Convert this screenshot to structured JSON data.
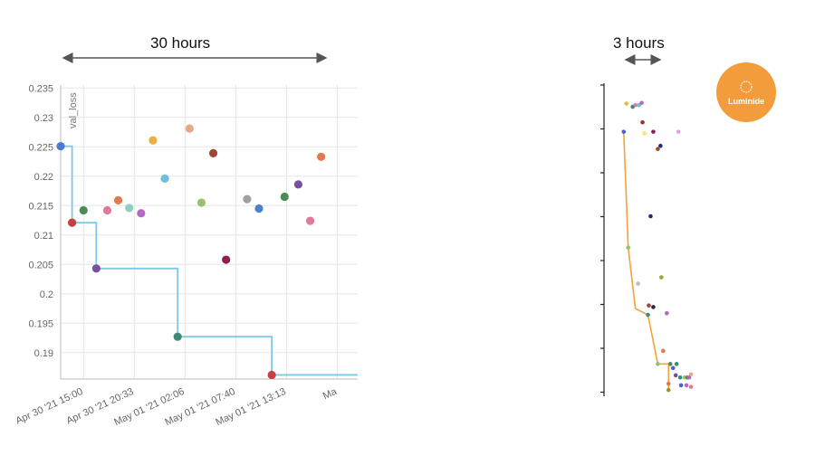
{
  "annotations": {
    "left_span": "30 hours",
    "right_span": "3 hours",
    "arrow_color": "#555555"
  },
  "logo": {
    "text": "Luminide",
    "color": "#f39c3b"
  },
  "chart_data": [
    {
      "type": "scatter",
      "ylabel": "val_loss",
      "ylim": [
        0.1855,
        0.2355
      ],
      "y_ticks": [
        0.235,
        0.23,
        0.225,
        0.22,
        0.215,
        0.21,
        0.205,
        0.2,
        0.195,
        0.19
      ],
      "y_tick_labels": [
        "0.235",
        "0.23",
        "0.225",
        "0.22",
        "0.215",
        "0.21",
        "0.205",
        "0.2",
        "0.195",
        "0.19"
      ],
      "x_tick_labels": [
        "Apr 30 '21 15:00",
        "Apr 30 '21 20:33",
        "May 01 '21 02:06",
        "May 01 '21 07:40",
        "May 01 '21 13:13",
        "Ma"
      ],
      "x_ticks_hours": [
        0,
        5.55,
        11.1,
        16.67,
        22.22,
        27.77
      ],
      "xlim_hours": [
        -2.5,
        30.0
      ],
      "grid": true,
      "points": [
        {
          "x": -2.5,
          "y": 0.2251,
          "color": "#4a7bd0"
        },
        {
          "x": -1.25,
          "y": 0.2121,
          "color": "#cc3d3d"
        },
        {
          "x": 0.0,
          "y": 0.2142,
          "color": "#4e8a55"
        },
        {
          "x": 1.4,
          "y": 0.2043,
          "color": "#7a4fa0"
        },
        {
          "x": 2.6,
          "y": 0.2142,
          "color": "#e07a9a"
        },
        {
          "x": 3.8,
          "y": 0.2159,
          "color": "#e07850"
        },
        {
          "x": 5.0,
          "y": 0.2146,
          "color": "#8fcfc0"
        },
        {
          "x": 6.3,
          "y": 0.2137,
          "color": "#b868c0"
        },
        {
          "x": 7.6,
          "y": 0.2261,
          "color": "#e8b040"
        },
        {
          "x": 8.9,
          "y": 0.2196,
          "color": "#6cc0dc"
        },
        {
          "x": 10.3,
          "y": 0.1927,
          "color": "#3d8a78"
        },
        {
          "x": 11.6,
          "y": 0.2281,
          "color": "#e8a888"
        },
        {
          "x": 12.9,
          "y": 0.2155,
          "color": "#98c070"
        },
        {
          "x": 14.2,
          "y": 0.2239,
          "color": "#a04838"
        },
        {
          "x": 15.6,
          "y": 0.2058,
          "color": "#8a2050"
        },
        {
          "x": 17.9,
          "y": 0.2161,
          "color": "#a0a0a0"
        },
        {
          "x": 19.2,
          "y": 0.2145,
          "color": "#4a80d0"
        },
        {
          "x": 20.6,
          "y": 0.1862,
          "color": "#cc3d3d"
        },
        {
          "x": 22.0,
          "y": 0.2165,
          "color": "#4e8a55"
        },
        {
          "x": 23.5,
          "y": 0.2186,
          "color": "#7a4fa0"
        },
        {
          "x": 24.8,
          "y": 0.2124,
          "color": "#e07a9a"
        },
        {
          "x": 26.0,
          "y": 0.2233,
          "color": "#e07850"
        }
      ],
      "best_line": {
        "color": "#7ec8e3",
        "x": [
          -2.5,
          -1.25,
          0.0,
          1.4,
          10.3,
          20.6,
          30.0
        ],
        "y": [
          0.2251,
          0.2121,
          0.2121,
          0.2043,
          0.1927,
          0.1862,
          0.1862
        ]
      }
    },
    {
      "type": "scatter",
      "grid": false,
      "ylim": [
        0,
        1
      ],
      "xlim": [
        0,
        1
      ],
      "points": [
        {
          "x": 0.25,
          "y": 0.935,
          "color": "#d8c040"
        },
        {
          "x": 0.32,
          "y": 0.925,
          "color": "#3d8a78"
        },
        {
          "x": 0.35,
          "y": 0.93,
          "color": "#e07a9a"
        },
        {
          "x": 0.39,
          "y": 0.93,
          "color": "#6cc0dc"
        },
        {
          "x": 0.42,
          "y": 0.937,
          "color": "#b868c0"
        },
        {
          "x": 0.22,
          "y": 0.845,
          "color": "#4a60d0"
        },
        {
          "x": 0.43,
          "y": 0.875,
          "color": "#a03030"
        },
        {
          "x": 0.55,
          "y": 0.845,
          "color": "#8a2050"
        },
        {
          "x": 0.45,
          "y": 0.84,
          "color": "#f5e870"
        },
        {
          "x": 0.6,
          "y": 0.79,
          "color": "#a04838"
        },
        {
          "x": 0.63,
          "y": 0.8,
          "color": "#223070"
        },
        {
          "x": 0.83,
          "y": 0.845,
          "color": "#e0a0e0"
        },
        {
          "x": 0.52,
          "y": 0.575,
          "color": "#1a2a80"
        },
        {
          "x": 0.27,
          "y": 0.475,
          "color": "#98c070"
        },
        {
          "x": 0.64,
          "y": 0.38,
          "color": "#98a840"
        },
        {
          "x": 0.38,
          "y": 0.36,
          "color": "#bcbcbc"
        },
        {
          "x": 0.5,
          "y": 0.29,
          "color": "#a04838"
        },
        {
          "x": 0.55,
          "y": 0.285,
          "color": "#2a2a40"
        },
        {
          "x": 0.7,
          "y": 0.265,
          "color": "#b868c0"
        },
        {
          "x": 0.49,
          "y": 0.26,
          "color": "#3d8a78"
        },
        {
          "x": 0.66,
          "y": 0.145,
          "color": "#e07850"
        },
        {
          "x": 0.6,
          "y": 0.103,
          "color": "#98c070"
        },
        {
          "x": 0.74,
          "y": 0.103,
          "color": "#4e8a55"
        },
        {
          "x": 0.77,
          "y": 0.09,
          "color": "#4a60d0"
        },
        {
          "x": 0.81,
          "y": 0.103,
          "color": "#3d8a78"
        },
        {
          "x": 0.8,
          "y": 0.067,
          "color": "#7a4fa0"
        },
        {
          "x": 0.85,
          "y": 0.06,
          "color": "#3d8a78"
        },
        {
          "x": 0.9,
          "y": 0.06,
          "color": "#98c070"
        },
        {
          "x": 0.93,
          "y": 0.06,
          "color": "#4e8a55"
        },
        {
          "x": 0.95,
          "y": 0.06,
          "color": "#b868c0"
        },
        {
          "x": 0.97,
          "y": 0.07,
          "color": "#e8a888"
        },
        {
          "x": 0.72,
          "y": 0.04,
          "color": "#e07850"
        },
        {
          "x": 0.86,
          "y": 0.035,
          "color": "#4a60d0"
        },
        {
          "x": 0.92,
          "y": 0.035,
          "color": "#b868c0"
        },
        {
          "x": 0.97,
          "y": 0.03,
          "color": "#e07a9a"
        },
        {
          "x": 0.72,
          "y": 0.02,
          "color": "#a09030"
        }
      ],
      "best_line": {
        "color": "#f5a23a",
        "x": [
          0.22,
          0.27,
          0.35,
          0.49,
          0.6,
          0.72,
          0.72
        ],
        "y": [
          0.845,
          0.475,
          0.28,
          0.26,
          0.103,
          0.103,
          0.02
        ]
      }
    }
  ]
}
